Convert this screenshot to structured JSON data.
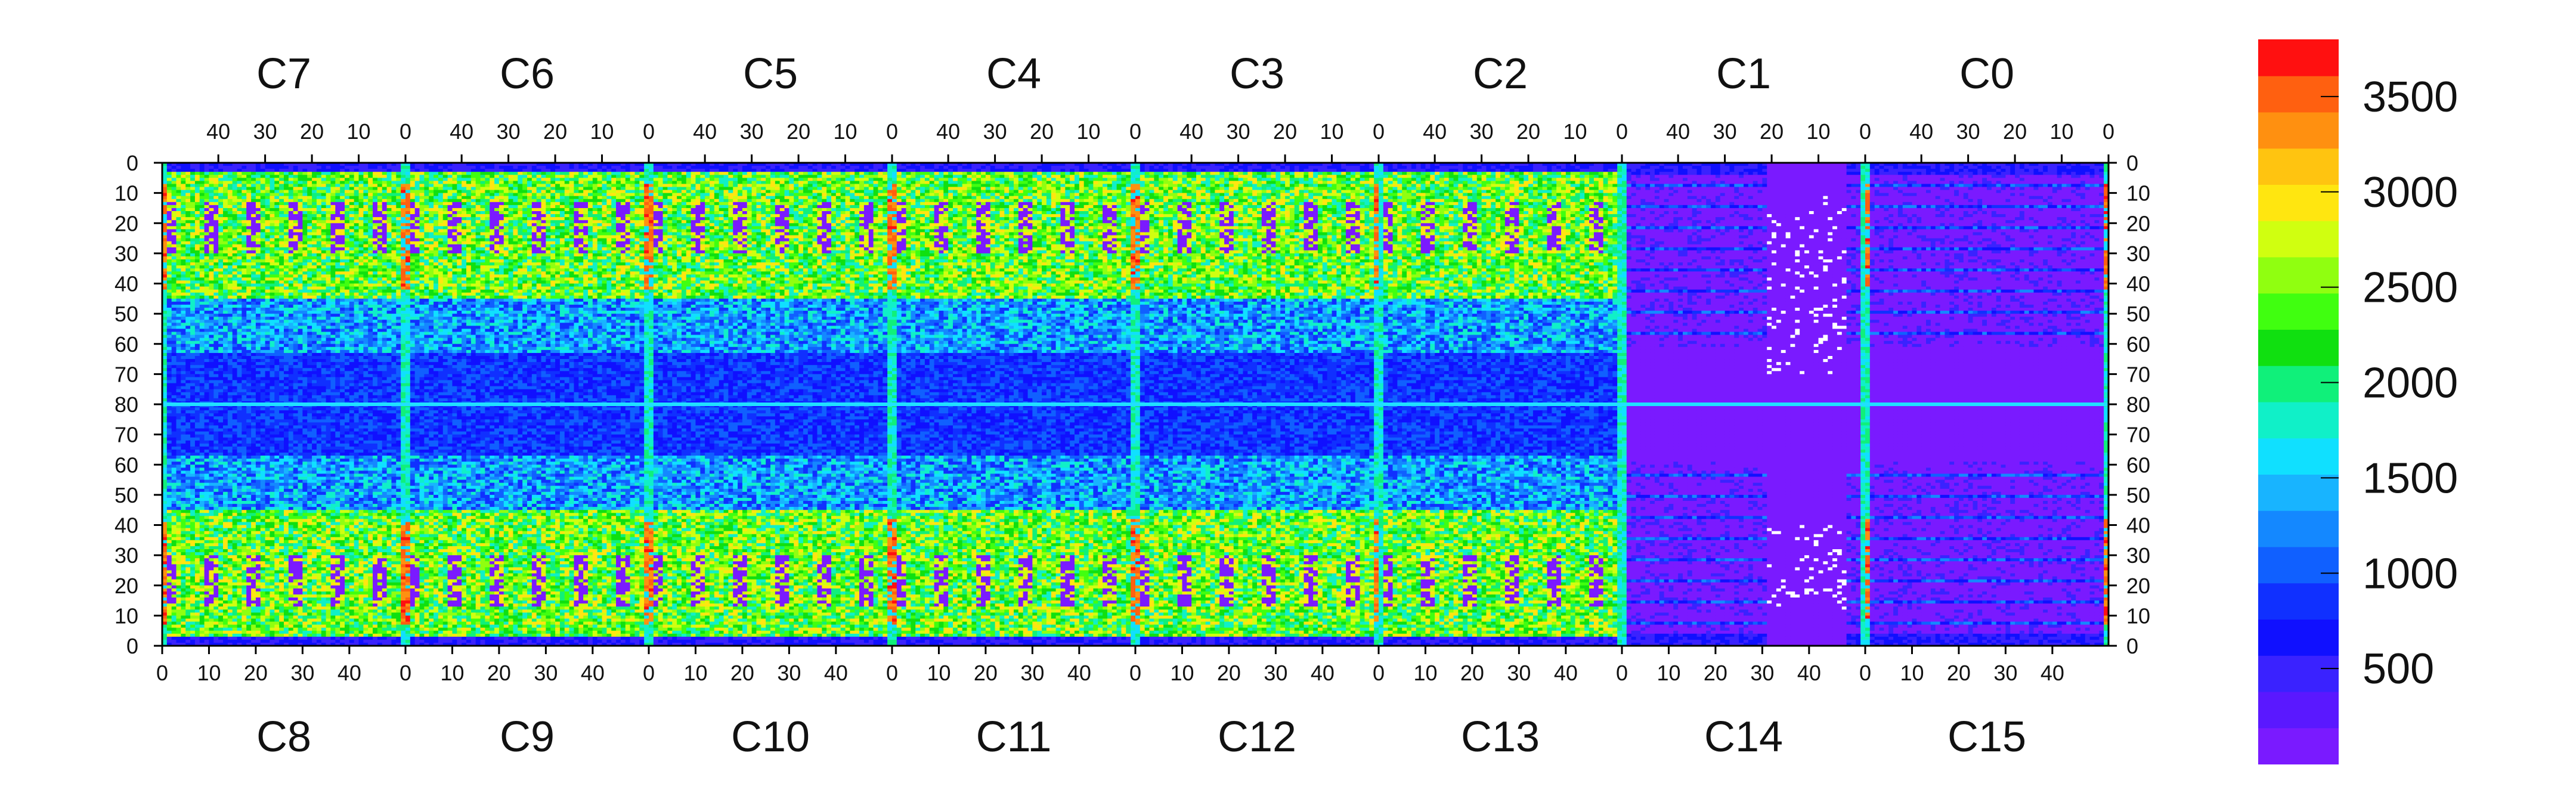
{
  "chart_data": {
    "type": "heatmap",
    "title": "",
    "colorbar": {
      "ticks": [
        500,
        1000,
        1500,
        2000,
        2500,
        3000,
        3500
      ],
      "range": [
        0,
        3800
      ]
    },
    "top_chips": [
      "C7",
      "C6",
      "C5",
      "C4",
      "C3",
      "C2",
      "C1",
      "C0"
    ],
    "bottom_chips": [
      "C8",
      "C9",
      "C10",
      "C11",
      "C12",
      "C13",
      "C14",
      "C15"
    ],
    "top_col_ticks": [
      "40",
      "30",
      "20",
      "10",
      "0"
    ],
    "bottom_col_ticks": [
      "0",
      "10",
      "20",
      "30",
      "40"
    ],
    "row_ticks": [
      "0",
      "10",
      "20",
      "30",
      "40",
      "50",
      "60",
      "70",
      "80",
      "70",
      "60",
      "50",
      "40",
      "30",
      "20",
      "10",
      "0"
    ],
    "grid_cols": 416,
    "grid_rows": 160,
    "color_scale": [
      "#7a1aff",
      "#5a18ff",
      "#3a22ff",
      "#1010ff",
      "#1030ff",
      "#1060ff",
      "#1488ff",
      "#18b4ff",
      "#10e0ff",
      "#10f0c8",
      "#10f07a",
      "#10e010",
      "#40ff10",
      "#90ff10",
      "#d0ff10",
      "#ffe610",
      "#ffc410",
      "#ff9010",
      "#ff6010",
      "#ff1010"
    ]
  }
}
